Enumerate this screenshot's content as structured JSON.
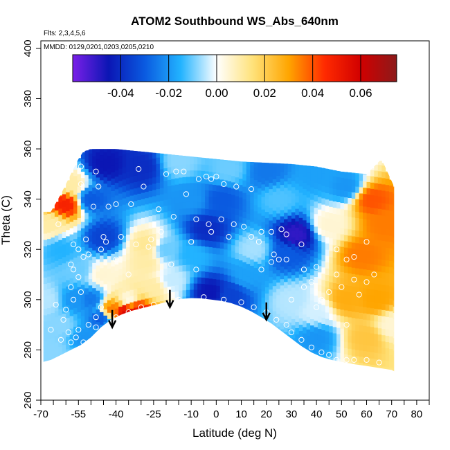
{
  "chart_data": {
    "type": "heatmap",
    "title": "ATOM2 Southbound WS_Abs_640nm",
    "flights_note": "Flts: 2,3,4,5,6",
    "dates_note": "MMDD: 0129,0201,0203,0205,0210",
    "xlabel": "Latitude (deg N)",
    "ylabel": "Theta (C)",
    "xlim": [
      -70,
      85
    ],
    "ylim": [
      260,
      403
    ],
    "xticks_major": [
      -70,
      -55,
      -40,
      -25,
      -10,
      0,
      10,
      20,
      30,
      40,
      50,
      60,
      70,
      80
    ],
    "xticks_minor": [
      -65,
      -60,
      -50,
      -45,
      -35,
      -30,
      -20,
      -15,
      -5,
      5,
      15,
      25,
      35,
      45,
      55,
      65,
      75,
      85
    ],
    "yticks": [
      260,
      280,
      300,
      320,
      340,
      360,
      380,
      400
    ],
    "colorbar": {
      "range": [
        -0.06,
        0.075
      ],
      "ticks": [
        -0.04,
        -0.02,
        0.0,
        0.02,
        0.04,
        0.06
      ],
      "tick_labels": [
        "-0.04",
        "-0.02",
        "0.00",
        "0.02",
        "0.04",
        "0.06"
      ],
      "colors": [
        "#7a1fe8",
        "#0b16b4",
        "#0a5ae0",
        "#22b3ff",
        "#ffffff",
        "#ffe27a",
        "#ffa500",
        "#ff2a00",
        "#d10000",
        "#8c1a1a"
      ]
    },
    "surface_boundary": [
      [
        -70,
        275
      ],
      [
        -66,
        276
      ],
      [
        -62,
        278
      ],
      [
        -58,
        280
      ],
      [
        -54,
        282
      ],
      [
        -50,
        285
      ],
      [
        -46,
        289
      ],
      [
        -42,
        292
      ],
      [
        -38,
        294
      ],
      [
        -34,
        295.5
      ],
      [
        -30,
        296.5
      ],
      [
        -26,
        297.5
      ],
      [
        -22,
        298.5
      ],
      [
        -18,
        299.5
      ],
      [
        -14,
        300.3
      ],
      [
        -10,
        300.6
      ],
      [
        -6,
        300.5
      ],
      [
        -2,
        300
      ],
      [
        2,
        299.5
      ],
      [
        6,
        298.6
      ],
      [
        10,
        297.2
      ],
      [
        14,
        295.3
      ],
      [
        18,
        293
      ],
      [
        22,
        290.5
      ],
      [
        26,
        287.5
      ],
      [
        30,
        284.5
      ],
      [
        34,
        281.5
      ],
      [
        38,
        279
      ],
      [
        42,
        277.2
      ],
      [
        46,
        276
      ],
      [
        50,
        275.2
      ],
      [
        55,
        274.3
      ],
      [
        60,
        273.6
      ],
      [
        65,
        272.8
      ],
      [
        70,
        272
      ],
      [
        72,
        271
      ]
    ],
    "data_top_boundary": [
      [
        -66,
        335
      ],
      [
        -62,
        342
      ],
      [
        -58,
        350
      ],
      [
        -55,
        356
      ],
      [
        -53,
        359
      ],
      [
        -50,
        360
      ],
      [
        -40,
        360
      ],
      [
        -30,
        359
      ],
      [
        -20,
        358
      ],
      [
        -10,
        357
      ],
      [
        0,
        356
      ],
      [
        10,
        355
      ],
      [
        20,
        354.5
      ],
      [
        30,
        354
      ],
      [
        40,
        353
      ],
      [
        50,
        351
      ],
      [
        60,
        350
      ],
      [
        66,
        356
      ],
      [
        71,
        345
      ]
    ],
    "arrows": [
      {
        "lat": -41.5,
        "theta": 289
      },
      {
        "lat": -18.5,
        "theta": 297
      },
      {
        "lat": 20,
        "theta": 292
      }
    ],
    "value_regions": [
      {
        "lat": 58,
        "theta": 318,
        "value": 0.035
      },
      {
        "lat": 62,
        "theta": 340,
        "value": 0.04
      },
      {
        "lat": 52,
        "theta": 300,
        "value": 0.028
      },
      {
        "lat": 60,
        "theta": 285,
        "value": 0.022
      },
      {
        "lat": 64,
        "theta": 300,
        "value": 0.03
      },
      {
        "lat": 45,
        "theta": 330,
        "value": 0.005
      },
      {
        "lat": 32,
        "theta": 326,
        "value": -0.05
      },
      {
        "lat": 28,
        "theta": 318,
        "value": -0.03
      },
      {
        "lat": 25,
        "theta": 340,
        "value": -0.012
      },
      {
        "lat": 30,
        "theta": 300,
        "value": -0.005
      },
      {
        "lat": 40,
        "theta": 295,
        "value": -0.003
      },
      {
        "lat": 40,
        "theta": 285,
        "value": -0.02
      },
      {
        "lat": 15,
        "theta": 320,
        "value": -0.006
      },
      {
        "lat": 12,
        "theta": 310,
        "value": -0.018
      },
      {
        "lat": 5,
        "theta": 302,
        "value": -0.035
      },
      {
        "lat": -2,
        "theta": 303,
        "value": -0.045
      },
      {
        "lat": 2,
        "theta": 340,
        "value": -0.03
      },
      {
        "lat": -4,
        "theta": 328,
        "value": -0.04
      },
      {
        "lat": -10,
        "theta": 340,
        "value": -0.02
      },
      {
        "lat": -10,
        "theta": 318,
        "value": -0.015
      },
      {
        "lat": -20,
        "theta": 320,
        "value": -0.01
      },
      {
        "lat": -28,
        "theta": 322,
        "value": 0.012
      },
      {
        "lat": -28,
        "theta": 315,
        "value": 0.01
      },
      {
        "lat": -18,
        "theta": 308,
        "value": -0.004
      },
      {
        "lat": -35,
        "theta": 300,
        "value": 0.003
      },
      {
        "lat": -32,
        "theta": 296,
        "value": 0.052
      },
      {
        "lat": -36,
        "theta": 295,
        "value": 0.058
      },
      {
        "lat": -42,
        "theta": 296,
        "value": 0.035
      },
      {
        "lat": -46,
        "theta": 293,
        "value": -0.03
      },
      {
        "lat": -50,
        "theta": 300,
        "value": -0.025
      },
      {
        "lat": -56,
        "theta": 300,
        "value": -0.02
      },
      {
        "lat": -52,
        "theta": 285,
        "value": -0.02
      },
      {
        "lat": -62,
        "theta": 290,
        "value": -0.008
      },
      {
        "lat": -55,
        "theta": 312,
        "value": -0.01
      },
      {
        "lat": -45,
        "theta": 325,
        "value": -0.035
      },
      {
        "lat": -45,
        "theta": 310,
        "value": 0.005
      },
      {
        "lat": -62,
        "theta": 320,
        "value": -0.015
      },
      {
        "lat": -60,
        "theta": 338,
        "value": 0.048
      },
      {
        "lat": -58,
        "theta": 346,
        "value": 0.01
      },
      {
        "lat": -50,
        "theta": 340,
        "value": -0.03
      },
      {
        "lat": -44,
        "theta": 354,
        "value": -0.045
      },
      {
        "lat": -30,
        "theta": 353,
        "value": -0.04
      },
      {
        "lat": -15,
        "theta": 355,
        "value": -0.008
      },
      {
        "lat": 5,
        "theta": 352,
        "value": -0.01
      },
      {
        "lat": 20,
        "theta": 351,
        "value": -0.025
      },
      {
        "lat": 40,
        "theta": 350,
        "value": -0.018
      },
      {
        "lat": 52,
        "theta": 345,
        "value": -0.02
      },
      {
        "lat": 67,
        "theta": 330,
        "value": 0.035
      },
      {
        "lat": 70,
        "theta": 290,
        "value": 0.005
      },
      {
        "lat": -66,
        "theta": 330,
        "value": 0.01
      },
      {
        "lat": -68,
        "theta": 300,
        "value": -0.005
      },
      {
        "lat": -66,
        "theta": 280,
        "value": -0.008
      },
      {
        "lat": -25,
        "theta": 305,
        "value": 0.01
      }
    ],
    "sample_points": [
      [
        -54,
        353
      ],
      [
        -48,
        351
      ],
      [
        -54,
        346
      ],
      [
        -47,
        345
      ],
      [
        -31,
        352
      ],
      [
        -20,
        350
      ],
      [
        -16,
        351
      ],
      [
        -13,
        351
      ],
      [
        -4,
        349
      ],
      [
        -7,
        348
      ],
      [
        -2,
        348
      ],
      [
        0,
        349
      ],
      [
        3,
        346
      ],
      [
        8,
        345
      ],
      [
        14,
        344
      ],
      [
        -12,
        342
      ],
      [
        -29,
        345
      ],
      [
        -40,
        338
      ],
      [
        -43,
        337
      ],
      [
        -34,
        338
      ],
      [
        -23,
        336
      ],
      [
        -49,
        337
      ],
      [
        -17,
        333
      ],
      [
        -8,
        332
      ],
      [
        -3,
        330
      ],
      [
        2,
        332
      ],
      [
        7,
        330
      ],
      [
        11,
        329
      ],
      [
        18,
        327
      ],
      [
        22,
        327
      ],
      [
        26,
        328
      ],
      [
        28,
        326
      ],
      [
        -55,
        320
      ],
      [
        -57,
        322
      ],
      [
        -52,
        324
      ],
      [
        -45,
        325
      ],
      [
        -44,
        323
      ],
      [
        -38,
        325
      ],
      [
        -32,
        322
      ],
      [
        -27,
        321
      ],
      [
        -26,
        324
      ],
      [
        -22,
        327
      ],
      [
        -10,
        323
      ],
      [
        -2,
        327
      ],
      [
        5,
        325
      ],
      [
        14,
        325
      ],
      [
        17,
        323
      ],
      [
        23,
        318
      ],
      [
        25,
        316
      ],
      [
        34,
        322
      ],
      [
        -63,
        330
      ],
      [
        -58,
        314
      ],
      [
        -57,
        312
      ],
      [
        -51,
        318
      ],
      [
        -46,
        320
      ],
      [
        -53,
        317
      ],
      [
        -40,
        316
      ],
      [
        -35,
        310
      ],
      [
        -18,
        314
      ],
      [
        -8,
        312
      ],
      [
        18,
        312
      ],
      [
        22,
        315
      ],
      [
        28,
        316
      ],
      [
        35,
        312
      ],
      [
        40,
        313
      ],
      [
        48,
        310
      ],
      [
        55,
        308
      ],
      [
        -55,
        309
      ],
      [
        -58,
        305
      ],
      [
        -54,
        303
      ],
      [
        -60,
        296
      ],
      [
        -64,
        298
      ],
      [
        -61,
        292
      ],
      [
        -57,
        300
      ],
      [
        -51,
        290
      ],
      [
        -48,
        293
      ],
      [
        -46,
        297
      ],
      [
        -40,
        293
      ],
      [
        -35,
        295
      ],
      [
        -30,
        297
      ],
      [
        -25,
        298
      ],
      [
        -15,
        300
      ],
      [
        -5,
        301
      ],
      [
        3,
        300
      ],
      [
        10,
        299
      ],
      [
        15,
        297
      ],
      [
        20,
        295
      ],
      [
        24,
        292
      ],
      [
        28,
        290
      ],
      [
        30,
        287
      ],
      [
        34,
        284
      ],
      [
        38,
        281
      ],
      [
        42,
        279
      ],
      [
        45,
        278
      ],
      [
        48,
        276
      ],
      [
        52,
        276
      ],
      [
        55,
        276
      ],
      [
        60,
        276
      ],
      [
        65,
        275
      ],
      [
        -56,
        285
      ],
      [
        -58,
        283
      ],
      [
        -53,
        283
      ],
      [
        -62,
        284
      ],
      [
        -66,
        288
      ],
      [
        45,
        303
      ],
      [
        42,
        300
      ],
      [
        50,
        305
      ],
      [
        60,
        307
      ],
      [
        57,
        302
      ],
      [
        63,
        310
      ],
      [
        60,
        323
      ],
      [
        55,
        317
      ],
      [
        52,
        316
      ],
      [
        48,
        320
      ],
      [
        -55,
        288
      ],
      [
        -52,
        281
      ],
      [
        -50,
        282
      ],
      [
        -59,
        287
      ],
      [
        -48,
        289
      ],
      [
        52,
        290
      ],
      [
        35,
        305
      ],
      [
        30,
        300
      ],
      [
        38,
        307
      ],
      [
        40,
        297
      ]
    ]
  }
}
